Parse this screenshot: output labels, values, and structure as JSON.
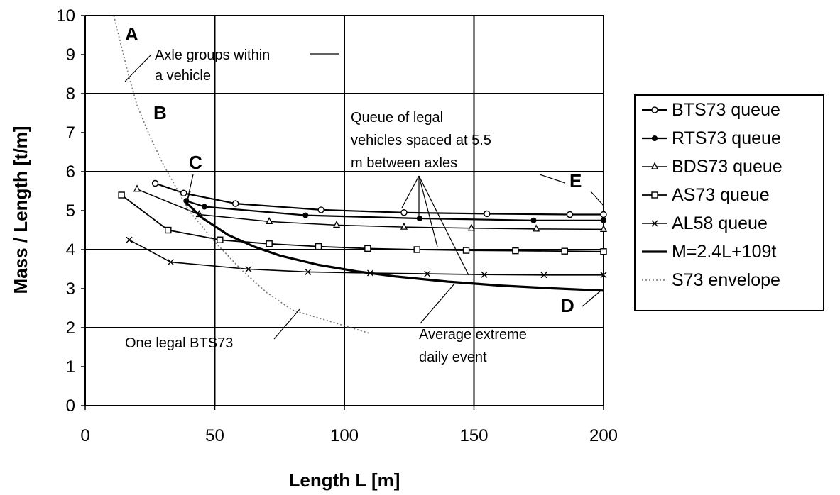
{
  "chart_data": {
    "type": "line",
    "xlabel": "Length L [m]",
    "ylabel": "Mass / Length [t/m]",
    "xlim": [
      0,
      200
    ],
    "ylim": [
      0,
      10
    ],
    "xticks": [
      "0",
      "50",
      "100",
      "150",
      "200"
    ],
    "yticks": [
      "0",
      "1",
      "2",
      "3",
      "4",
      "5",
      "6",
      "7",
      "8",
      "9",
      "10"
    ],
    "grid": true,
    "legend_position": "right",
    "series": [
      {
        "name": "BTS73 queue",
        "marker": "circle",
        "width": 2.2,
        "dash": "",
        "x": [
          27,
          38,
          58,
          91,
          123,
          155,
          187,
          200
        ],
        "y": [
          5.7,
          5.45,
          5.18,
          5.02,
          4.95,
          4.92,
          4.9,
          4.9
        ]
      },
      {
        "name": "RTS73 queue",
        "marker": "dot",
        "width": 2.2,
        "dash": "",
        "x": [
          39,
          46,
          85,
          129,
          173,
          200
        ],
        "y": [
          5.25,
          5.1,
          4.88,
          4.8,
          4.75,
          4.75
        ]
      },
      {
        "name": "BDS73 queue",
        "marker": "triangle",
        "width": 1.5,
        "dash": "",
        "x": [
          20,
          44,
          71,
          97,
          123,
          149,
          174,
          200
        ],
        "y": [
          5.55,
          4.9,
          4.72,
          4.63,
          4.58,
          4.55,
          4.53,
          4.52
        ]
      },
      {
        "name": "AS73 queue",
        "marker": "square",
        "width": 1.8,
        "dash": "",
        "x": [
          14,
          32,
          52,
          71,
          90,
          109,
          128,
          147,
          166,
          185,
          200
        ],
        "y": [
          5.4,
          4.5,
          4.25,
          4.15,
          4.08,
          4.03,
          4.0,
          3.98,
          3.97,
          3.96,
          3.95
        ]
      },
      {
        "name": "AL58 queue",
        "marker": "x",
        "width": 1.6,
        "dash": "",
        "x": [
          17,
          33,
          63,
          86,
          110,
          132,
          154,
          177,
          200
        ],
        "y": [
          4.25,
          3.68,
          3.5,
          3.43,
          3.4,
          3.38,
          3.36,
          3.35,
          3.35
        ]
      },
      {
        "name": "M=2.4L+109t",
        "marker": "none",
        "width": 3.2,
        "dash": "",
        "x": [
          38,
          45,
          55,
          65,
          75,
          90,
          105,
          120,
          140,
          160,
          180,
          200
        ],
        "y": [
          5.27,
          4.82,
          4.38,
          4.08,
          3.85,
          3.61,
          3.44,
          3.31,
          3.18,
          3.08,
          3.01,
          2.95
        ]
      },
      {
        "name": "S73 envelope",
        "marker": "none",
        "width": 1.6,
        "dash": "2,3",
        "x": [
          11,
          14,
          17,
          20,
          25,
          30,
          35,
          40,
          45,
          50,
          60,
          70,
          80,
          95,
          110
        ],
        "y": [
          10.0,
          9.2,
          8.4,
          7.7,
          6.9,
          6.2,
          5.6,
          5.0,
          4.6,
          4.2,
          3.5,
          2.9,
          2.45,
          2.15,
          1.85
        ]
      }
    ],
    "annotations": {
      "A": "A",
      "B": "B",
      "C": "C",
      "D": "D",
      "E": "E",
      "axle_1": "Axle groups within",
      "axle_2": "a  vehicle",
      "queue_1": "Queue of legal",
      "queue_2": "vehicles spaced at 5.5",
      "queue_3": "m between axles",
      "one_legal": "One legal BTS73",
      "avg_1": "Average extreme",
      "avg_2": "daily event"
    }
  }
}
